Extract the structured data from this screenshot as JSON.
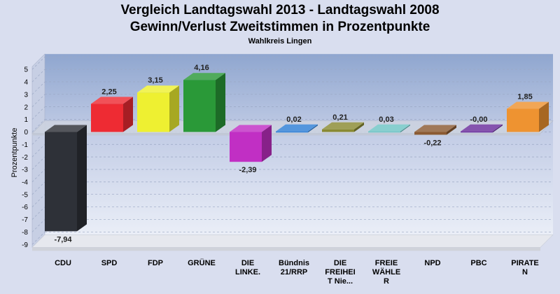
{
  "chart_data": {
    "type": "bar",
    "title": "Vergleich Landtagswahl 2013 - Landtagswahl 2008",
    "subtitle": "Gewinn/Verlust Zweitstimmen in Prozentpunkte",
    "caption": "Wahlkreis Lingen",
    "ylabel": "Prozentpunkte",
    "ylim": [
      -9,
      5
    ],
    "yticks": [
      5,
      4,
      3,
      2,
      1,
      0,
      -1,
      -2,
      -3,
      -4,
      -5,
      -6,
      -7,
      -8,
      -9
    ],
    "categories": [
      [
        "CDU"
      ],
      [
        "SPD"
      ],
      [
        "FDP"
      ],
      [
        "GRÜNE"
      ],
      [
        "DIE",
        "LINKE."
      ],
      [
        "Bündnis",
        "21/RRP"
      ],
      [
        "DIE",
        "FREIHEI",
        "T Nie..."
      ],
      [
        "FREIE",
        "WÄHLE",
        "R"
      ],
      [
        "NPD"
      ],
      [
        "PBC"
      ],
      [
        "PIRATE",
        "N"
      ]
    ],
    "values": [
      -7.94,
      2.25,
      3.15,
      4.16,
      -2.39,
      0.02,
      0.21,
      0.03,
      -0.22,
      -0.0,
      1.85
    ],
    "value_labels": [
      "-7,94",
      "2,25",
      "3,15",
      "4,16",
      "-2,39",
      "0,02",
      "0,21",
      "0,03",
      "-0,22",
      "-0,00",
      "1,85"
    ],
    "colors": [
      "#2e3138",
      "#ee2b33",
      "#eef031",
      "#2a9938",
      "#c12fc4",
      "#2f7fd6",
      "#8a8a32",
      "#6ec5c5",
      "#8b5a32",
      "#6a2d9c",
      "#ee9331"
    ],
    "grid": true,
    "legend": "none"
  }
}
